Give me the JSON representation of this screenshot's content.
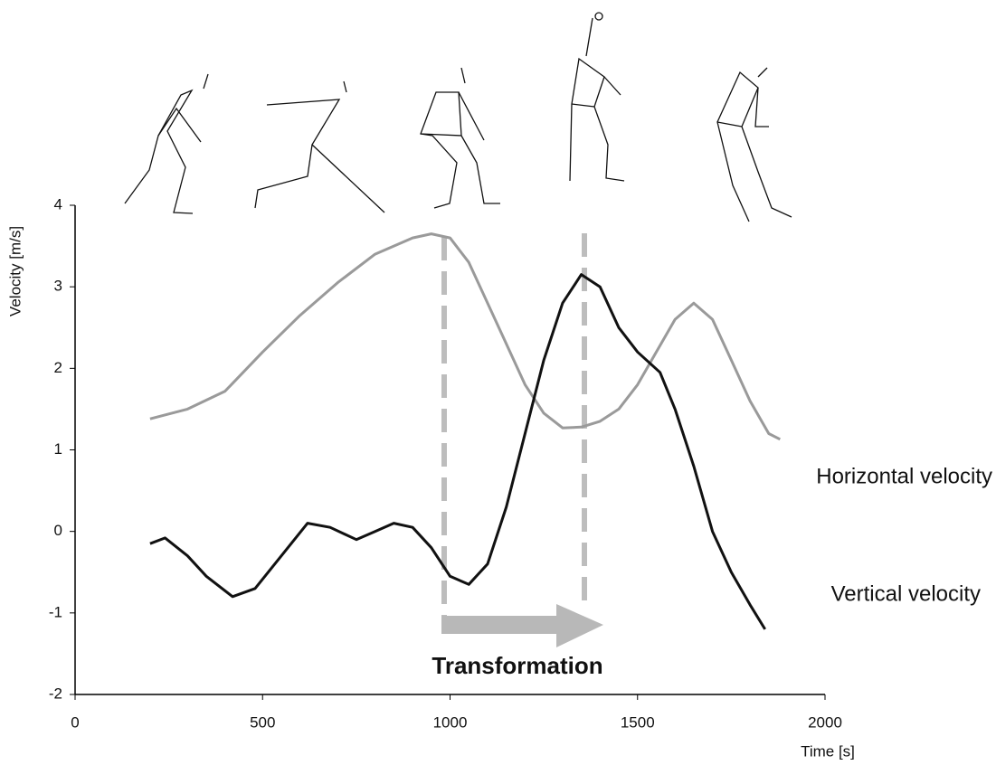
{
  "chart_data": {
    "type": "line",
    "x_label": "Time [s]",
    "y_label": "Velocity [m/s]",
    "annotation": "Transformation",
    "xlim": [
      0,
      2000
    ],
    "xticks": [
      0,
      500,
      1000,
      1500,
      2000
    ],
    "ylim": [
      -2,
      4
    ],
    "yticks": [
      -2,
      -1,
      0,
      1,
      2,
      3,
      4
    ],
    "grid": false,
    "series": [
      {
        "name": "Horizontal velocity",
        "color": "#9a9a9a",
        "x": [
          200,
          300,
          400,
          500,
          600,
          700,
          800,
          900,
          950,
          1000,
          1050,
          1100,
          1150,
          1200,
          1250,
          1300,
          1350,
          1400,
          1450,
          1500,
          1550,
          1600,
          1650,
          1700,
          1750,
          1800,
          1850,
          1880
        ],
        "values": [
          1.38,
          1.5,
          1.72,
          2.2,
          2.65,
          3.05,
          3.4,
          3.6,
          3.65,
          3.6,
          3.3,
          2.8,
          2.3,
          1.8,
          1.45,
          1.27,
          1.28,
          1.35,
          1.5,
          1.8,
          2.2,
          2.6,
          2.8,
          2.6,
          2.1,
          1.6,
          1.2,
          1.13
        ]
      },
      {
        "name": "Vertical velocity",
        "color": "#111111",
        "x": [
          200,
          240,
          300,
          350,
          420,
          480,
          550,
          620,
          680,
          750,
          800,
          850,
          900,
          950,
          1000,
          1050,
          1100,
          1150,
          1200,
          1250,
          1300,
          1350,
          1400,
          1450,
          1500,
          1560,
          1600,
          1650,
          1700,
          1750,
          1800,
          1840
        ],
        "values": [
          -0.15,
          -0.08,
          -0.3,
          -0.55,
          -0.8,
          -0.7,
          -0.3,
          0.1,
          0.05,
          -0.1,
          0,
          0.1,
          0.05,
          -0.2,
          -0.55,
          -0.65,
          -0.4,
          0.3,
          1.2,
          2.1,
          2.8,
          3.15,
          3.0,
          2.5,
          2.2,
          1.95,
          1.5,
          0.8,
          0.0,
          -0.5,
          -0.9,
          -1.2
        ]
      }
    ]
  }
}
